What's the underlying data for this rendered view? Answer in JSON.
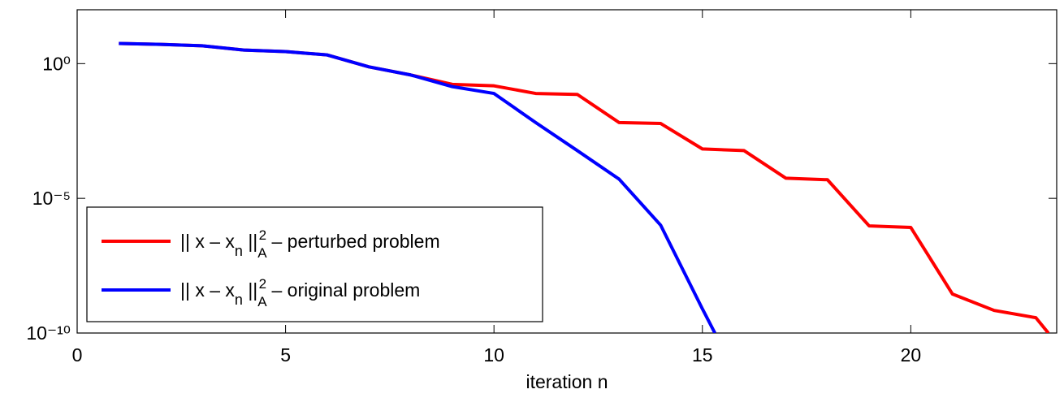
{
  "chart_data": {
    "type": "line",
    "x_label": "iteration n",
    "log_y": true,
    "xlim": [
      0,
      23.5
    ],
    "xticks": [
      0,
      5,
      10,
      15,
      20
    ],
    "ylim": [
      1e-10,
      100
    ],
    "yticks": [
      {
        "value": 1,
        "label": "10⁰"
      },
      {
        "value": 1e-05,
        "label": "10⁻⁵"
      },
      {
        "value": 1e-10,
        "label": "10⁻¹⁰"
      }
    ],
    "legend": "lower left",
    "series": [
      {
        "name": "|| x – xn ||A2 – perturbed problem",
        "color": "#ff0000",
        "x": [
          1,
          2,
          3,
          4,
          5,
          6,
          7,
          8,
          9,
          10,
          11,
          12,
          13,
          14,
          15,
          16,
          17,
          18,
          19,
          20,
          21,
          22,
          23,
          23.3
        ],
        "values": [
          5.6,
          5.2,
          4.6,
          3.2,
          2.8,
          2.1,
          0.76,
          0.38,
          0.17,
          0.15,
          0.078,
          0.072,
          0.0065,
          0.006,
          0.00068,
          0.00059,
          5.6e-05,
          4.9e-05,
          9.5e-07,
          8.3e-07,
          2.8e-09,
          6.9e-10,
          3.7e-10,
          1e-10
        ]
      },
      {
        "name": "|| x – xn ||A2 – original problem",
        "color": "#0000ff",
        "x": [
          1,
          2,
          3,
          4,
          5,
          6,
          7,
          8,
          9,
          10,
          11,
          12,
          13,
          14,
          15,
          15.3
        ],
        "values": [
          5.6,
          5.2,
          4.6,
          3.2,
          2.8,
          2.1,
          0.76,
          0.38,
          0.14,
          0.078,
          0.0065,
          0.00059,
          5.2e-05,
          1e-06,
          7.9e-10,
          1e-10
        ]
      }
    ]
  }
}
